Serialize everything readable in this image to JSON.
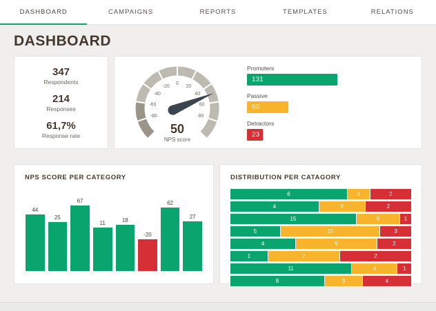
{
  "nav": {
    "tabs": [
      {
        "label": "DASHBOARD",
        "active": true
      },
      {
        "label": "CAMPAIGNS",
        "active": false
      },
      {
        "label": "REPORTS",
        "active": false
      },
      {
        "label": "TEMPLATES",
        "active": false
      },
      {
        "label": "RELATIONS",
        "active": false
      }
    ]
  },
  "page": {
    "title": "DASHBOARD"
  },
  "stats": {
    "items": [
      {
        "value": "347",
        "label": "Respondents"
      },
      {
        "value": "214",
        "label": "Responses"
      },
      {
        "value": "61,7%",
        "label": "Response rate"
      }
    ]
  },
  "gauge": {
    "value": 50,
    "score_label": "50",
    "caption": "NPS score",
    "min": -100,
    "max": 100,
    "ticks": [
      "-80",
      "-60",
      "-40",
      "-20",
      "0",
      "20",
      "40",
      "60",
      "80"
    ]
  },
  "nps_breakdown": {
    "items": [
      {
        "label": "Promoters",
        "value": 131,
        "color": "#0aa56e"
      },
      {
        "label": "Passive",
        "value": 60,
        "color": "#f8b42c"
      },
      {
        "label": "Detractors",
        "value": 23,
        "color": "#d62f35"
      }
    ]
  },
  "chart_data": [
    {
      "type": "bar",
      "title": "NPS SCORE PER CATEGORY",
      "values": [
        44,
        25,
        67,
        11,
        18,
        -20,
        62,
        27
      ],
      "ylim": [
        -100,
        100
      ],
      "positive_color": "#0aa56e",
      "negative_color": "#d62f35",
      "value_labels_shown": true
    },
    {
      "type": "stacked-bar-horizontal",
      "title": "DISTRIBUTION PER CATAGORY",
      "series": [
        "Promoters",
        "Passive",
        "Detractors"
      ],
      "colors": [
        "#0aa56e",
        "#f8b42c",
        "#d62f35"
      ],
      "rows": [
        [
          6,
          1,
          2
        ],
        [
          4,
          2,
          2
        ],
        [
          15,
          5,
          1
        ],
        [
          5,
          10,
          3
        ],
        [
          4,
          5,
          2
        ],
        [
          1,
          2,
          2
        ],
        [
          11,
          4,
          1
        ],
        [
          8,
          3,
          4
        ]
      ],
      "normalized": true
    }
  ],
  "colors": {
    "accent_green": "#0aa56e",
    "accent_yellow": "#f8b42c",
    "accent_red": "#d62f35",
    "title_brown": "#46382f",
    "gauge_arc_light": "#bdbab2",
    "gauge_arc_dark": "#9a9489",
    "needle": "#3a454e"
  }
}
